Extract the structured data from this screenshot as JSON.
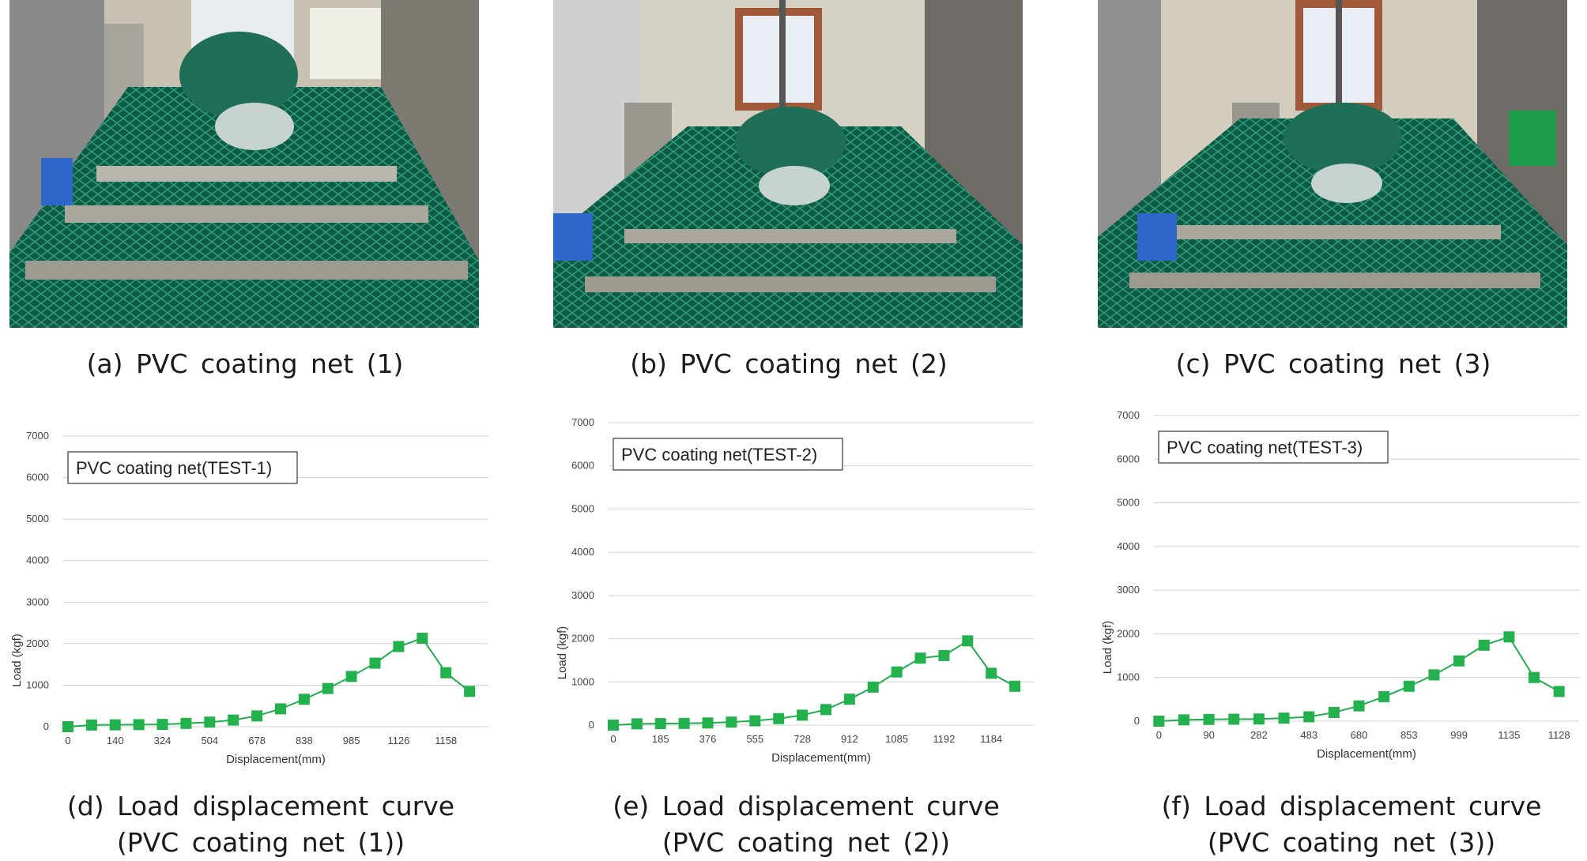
{
  "photos": [
    {
      "id": "a",
      "caption": "(a)  PVC  coating  net  (1)"
    },
    {
      "id": "b",
      "caption": "(b)  PVC  coating  net  (2)"
    },
    {
      "id": "c",
      "caption": "(c)  PVC  coating  net  (3)"
    }
  ],
  "chart_captions": [
    {
      "line1": "(d)  Load  displacement  curve",
      "line2": "(PVC  coating  net  (1))"
    },
    {
      "line1": "(e)  Load  displacement  curve",
      "line2": "(PVC  coating  net  (2))"
    },
    {
      "line1": "(f)  Load  displacement  curve",
      "line2": "(PVC  coating  net  (3))"
    }
  ],
  "colors": {
    "series": "#1fae4b",
    "marker": "#22b14c",
    "grid": "#d0d0d0"
  },
  "chart_data": [
    {
      "type": "line",
      "title": "PVC coating net(TEST-1)",
      "xlabel": "Displacement(mm)",
      "ylabel": "Load (kgf)",
      "ylim": [
        0,
        7000
      ],
      "yticks": [
        0,
        1000,
        2000,
        3000,
        4000,
        5000,
        6000,
        7000
      ],
      "xticklabels": [
        "0",
        "140",
        "324",
        "504",
        "678",
        "838",
        "985",
        "1126",
        "1158"
      ],
      "series": [
        {
          "values": [
            0,
            40,
            45,
            50,
            55,
            80,
            110,
            160,
            260,
            430,
            660,
            920,
            1210,
            1530,
            1930,
            2130,
            1300,
            850
          ]
        }
      ],
      "grid": true
    },
    {
      "type": "line",
      "title": "PVC coating net(TEST-2)",
      "xlabel": "Displacement(mm)",
      "ylabel": "Load (kgf)",
      "ylim": [
        0,
        7000
      ],
      "yticks": [
        0,
        1000,
        2000,
        3000,
        4000,
        5000,
        6000,
        7000
      ],
      "xticklabels": [
        "0",
        "185",
        "376",
        "555",
        "728",
        "912",
        "1085",
        "1192",
        "1184"
      ],
      "series": [
        {
          "values": [
            0,
            30,
            35,
            40,
            50,
            70,
            100,
            150,
            230,
            360,
            600,
            880,
            1230,
            1550,
            1610,
            1950,
            1200,
            900
          ]
        }
      ],
      "grid": true
    },
    {
      "type": "line",
      "title": "PVC coating net(TEST-3)",
      "xlabel": "Displacement(mm)",
      "ylabel": "Load (kgf)",
      "ylim": [
        0,
        7000
      ],
      "yticks": [
        0,
        1000,
        2000,
        3000,
        4000,
        5000,
        6000,
        7000
      ],
      "xticklabels": [
        "0",
        "90",
        "282",
        "483",
        "680",
        "853",
        "999",
        "1135",
        "1128"
      ],
      "series": [
        {
          "values": [
            0,
            30,
            40,
            45,
            50,
            70,
            100,
            200,
            350,
            560,
            800,
            1060,
            1380,
            1740,
            1930,
            1000,
            680
          ]
        }
      ],
      "grid": true
    }
  ]
}
